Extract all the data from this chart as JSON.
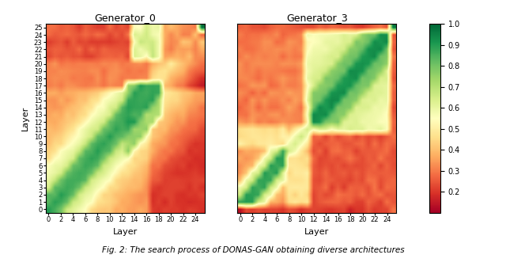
{
  "title1": "Generator_0",
  "title2": "Generator_3",
  "xlabel": "Layer",
  "ylabel": "Layer",
  "figcaption": "Fig. 2: The search process of DONAS-GAN obtaining diverse architectures",
  "n_layers": 26,
  "cmap": "RdYlGn",
  "vmin": 0.1,
  "vmax": 1.0,
  "colorbar_ticks": [
    0.2,
    0.3,
    0.4,
    0.5,
    0.6,
    0.7,
    0.8,
    0.9,
    1.0
  ],
  "xtick_step": 2,
  "ytick_step": 1,
  "figsize": [
    6.4,
    3.36
  ],
  "dpi": 100
}
